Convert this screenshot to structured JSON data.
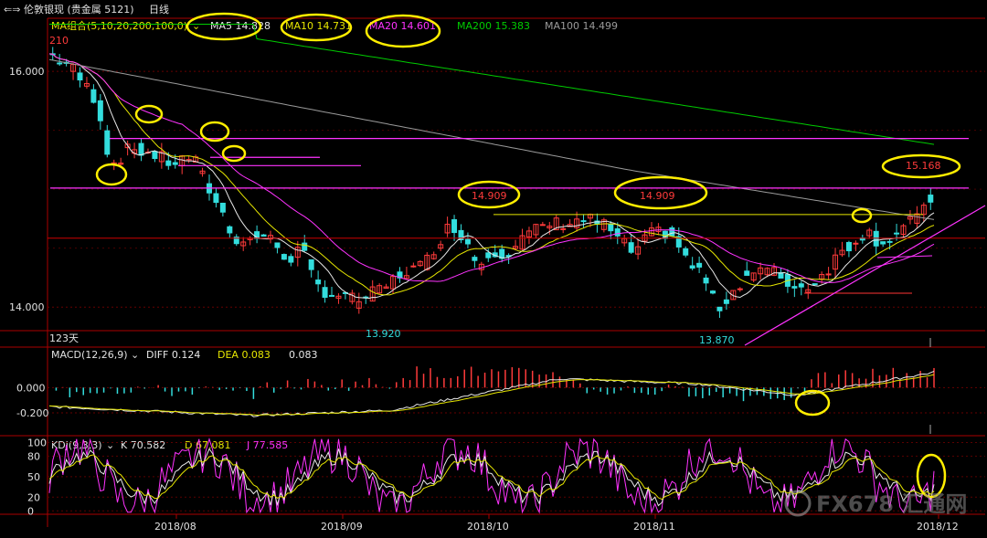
{
  "header": {
    "instrument": "伦敦银现 (贵金属 5121)",
    "period": "日线"
  },
  "ma_legend": {
    "title": "MA组合(5,10,20,200,100,0)",
    "items": [
      {
        "label": "MA5 14.828",
        "color": "#e8e8e8"
      },
      {
        "label": "MA10 14.731",
        "color": "#e6e600"
      },
      {
        "label": "MA20 14.601",
        "color": "#ff33ff"
      },
      {
        "label": "MA200 15.383",
        "color": "#00cc00"
      },
      {
        "label": "MA100 14.499",
        "color": "#9a9a9a"
      }
    ]
  },
  "macd_legend": {
    "title": "MACD(12,26,9)",
    "items": [
      {
        "label": "DIFF 0.124",
        "color": "#e8e8e8"
      },
      {
        "label": "DEA 0.083",
        "color": "#e6e600"
      },
      {
        "label": "0.083",
        "color": "#e8e8e8"
      }
    ]
  },
  "kdj_legend": {
    "title": "KDJ(9,3,3)",
    "items": [
      {
        "label": "K 70.582",
        "color": "#e8e8e8"
      },
      {
        "label": "D 67.081",
        "color": "#e6e600"
      },
      {
        "label": "J 77.585",
        "color": "#ff33ff"
      }
    ]
  },
  "chart_data": [
    {
      "type": "candlestick",
      "panel": "price",
      "y_ticks": [
        "16.000",
        "14.000"
      ],
      "ylim": [
        13.8,
        16.45
      ],
      "x_ticks": [
        "2018/08",
        "2018/09",
        "2018/10",
        "2018/11",
        "2018/12"
      ],
      "annotations": {
        "top_left": "210",
        "bottom_left": "123天",
        "lows": [
          "13.920",
          "13.870"
        ],
        "highs": [
          "14.909",
          "14.909",
          "15.168"
        ]
      },
      "horizontal_levels": [
        {
          "value": 15.43,
          "color": "#ff33ff"
        },
        {
          "value": 15.2,
          "color": "#ff33ff"
        },
        {
          "value": 15.01,
          "color": "#ff33ff"
        },
        {
          "value": 15.01,
          "color": "#ff33ff"
        },
        {
          "value": 14.909,
          "color": "#e6e600"
        },
        {
          "value": 14.6,
          "color": "#cc0000"
        }
      ],
      "candles": []
    },
    {
      "type": "bar",
      "panel": "macd",
      "y_ticks": [
        "0.000",
        "-0.200"
      ],
      "ylim": [
        -0.38,
        0.32
      ]
    },
    {
      "type": "line",
      "panel": "kdj",
      "y_ticks": [
        "100",
        "80",
        "50",
        "20",
        "0"
      ],
      "ylim": [
        -5,
        110
      ]
    }
  ],
  "watermark": "FX678 汇通网"
}
